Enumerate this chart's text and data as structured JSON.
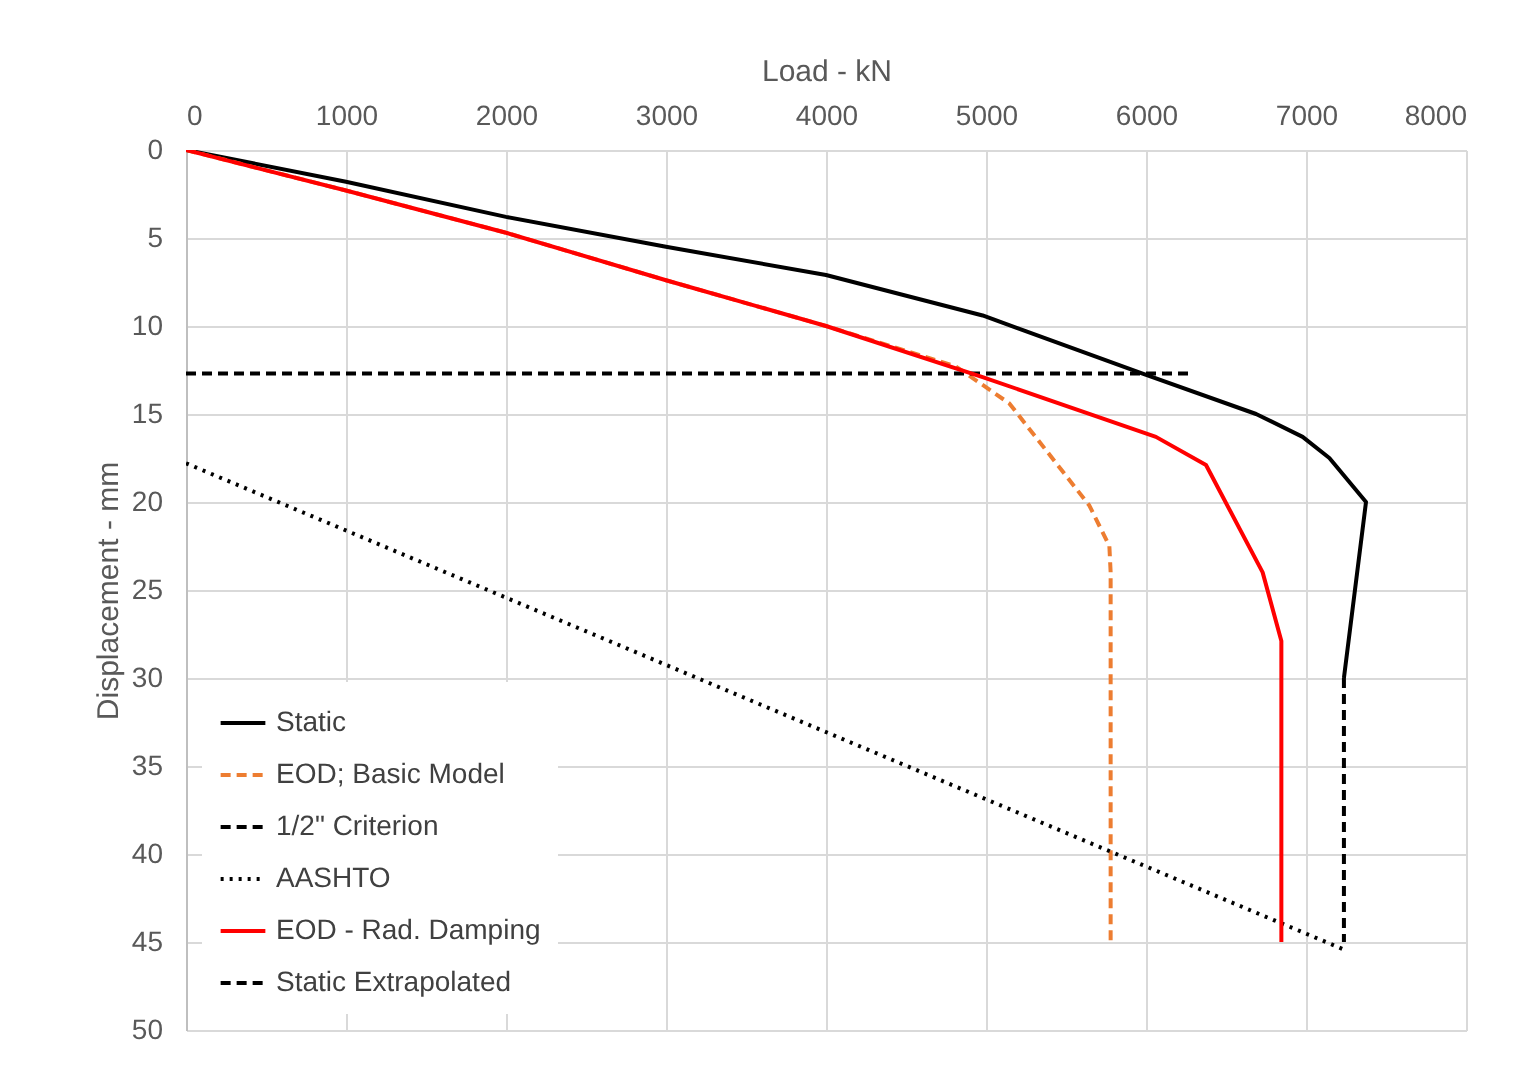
{
  "chart_data": {
    "type": "line",
    "xlabel": "Load - kN",
    "ylabel": "Displacement - mm",
    "xlim": [
      0,
      8000
    ],
    "ylim": [
      50,
      0
    ],
    "xticks": [
      0,
      1000,
      2000,
      3000,
      4000,
      5000,
      6000,
      7000,
      8000
    ],
    "yticks": [
      0,
      5,
      10,
      15,
      20,
      25,
      30,
      35,
      40,
      45,
      50
    ],
    "grid": true,
    "legend": "bottom left",
    "series": [
      {
        "name": "Static",
        "color": "#000000",
        "line_style": "solid",
        "x": [
          0,
          1000,
          2000,
          3000,
          4000,
          4979,
          5979,
          6688,
          6979,
          7146,
          7375,
          7237
        ],
        "values": [
          0,
          1.8,
          3.8,
          5.5,
          7.1,
          9.4,
          12.7,
          15,
          16.3,
          17.5,
          20,
          30
        ]
      },
      {
        "name": "EOD; Basic Model",
        "color": "#ed7d31",
        "line_style": "dashed",
        "x": [
          0,
          1000,
          2000,
          3000,
          4000,
          4812,
          5146,
          5646,
          5771,
          5779,
          5779
        ],
        "values": [
          0,
          2.3,
          4.7,
          7.4,
          10,
          12.3,
          14.4,
          20.2,
          22.5,
          24,
          45
        ]
      },
      {
        "name": "1/2\" Criterion",
        "color": "#000000",
        "line_style": "dashed",
        "x": [
          0,
          6270
        ],
        "values": [
          12.7,
          12.7
        ]
      },
      {
        "name": "AASHTO",
        "color": "#000000",
        "line_style": "dotted",
        "x": [
          0,
          7229
        ],
        "values": [
          17.8,
          45.4
        ]
      },
      {
        "name": "EOD - Rad. Damping",
        "color": "#ff0000",
        "line_style": "solid",
        "x": [
          0,
          1000,
          2000,
          3000,
          4000,
          4979,
          6062,
          6375,
          6729,
          6846,
          6846
        ],
        "values": [
          0,
          2.3,
          4.7,
          7.4,
          10,
          12.9,
          16.3,
          17.9,
          24,
          27.9,
          45
        ]
      },
      {
        "name": "Static Extrapolated",
        "color": "#000000",
        "line_style": "dashed",
        "x": [
          7237,
          7237
        ],
        "values": [
          30,
          45
        ]
      }
    ]
  }
}
